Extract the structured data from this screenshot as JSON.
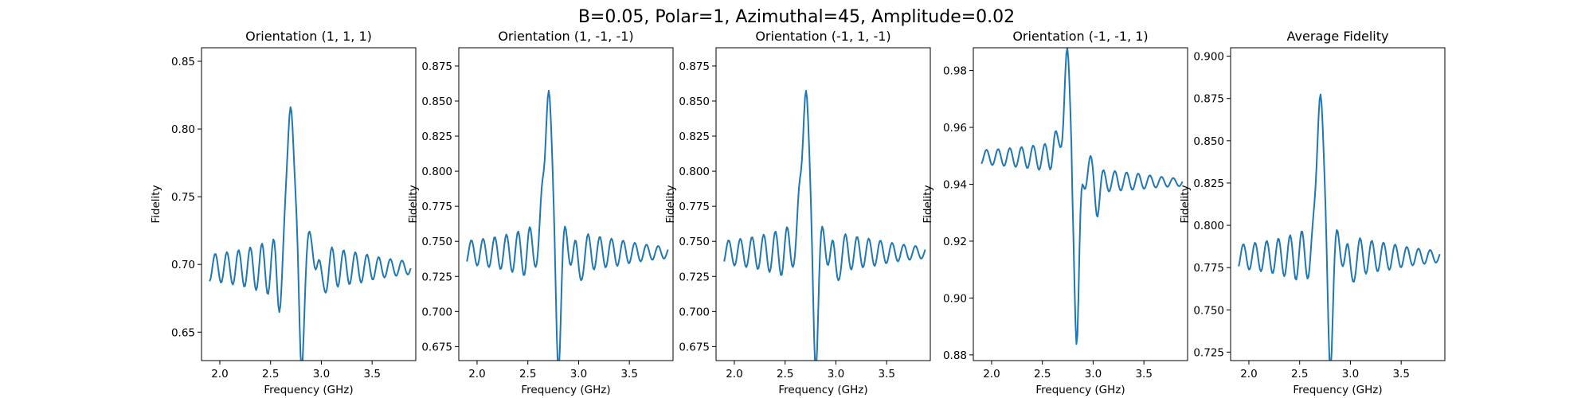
{
  "figure": {
    "suptitle": "B=0.05, Polar=1, Azimuthal=45, Amplitude=0.02"
  },
  "chart_data": [
    {
      "type": "line",
      "title": "Orientation (1, 1, 1)",
      "xlabel": "Frequency (GHz)",
      "ylabel": "Fidelity",
      "xlim": [
        1.82,
        3.93
      ],
      "ylim": [
        0.629,
        0.86
      ],
      "xticks": [
        2.0,
        2.5,
        3.0,
        3.5
      ],
      "yticks": [
        0.65,
        0.7,
        0.75,
        0.8,
        0.85
      ],
      "ytick_decimals": 2,
      "color": "#1f77b4",
      "profile": {
        "base": 0.6975,
        "osc_amp": 0.007,
        "osc_growth": 0.4,
        "osc_phase": 0.0,
        "far_slope": 0.0,
        "peak_value": 0.845,
        "dip_value": 0.64,
        "post_dip_value": 0.674,
        "post_peak_value": 0.721,
        "pre_peak_value": 0.712,
        "pre_dip_value": 0.675,
        "center_x": 2.7,
        "x_start": 1.9,
        "x_end": 3.88,
        "n_points": 200
      }
    },
    {
      "type": "line",
      "title": "Orientation (1, -1, -1)",
      "xlabel": "Frequency (GHz)",
      "ylabel": "Fidelity",
      "xlim": [
        1.82,
        3.93
      ],
      "ylim": [
        0.665,
        0.888
      ],
      "xticks": [
        2.0,
        2.5,
        3.0,
        3.5
      ],
      "yticks": [
        0.675,
        0.7,
        0.725,
        0.75,
        0.775,
        0.8,
        0.825,
        0.85,
        0.875
      ],
      "ytick_decimals": 3,
      "color": "#1f77b4",
      "profile": {
        "base": 0.742,
        "osc_amp": 0.006,
        "osc_growth": 0.4,
        "osc_phase": 0.6,
        "far_slope": 0.0,
        "peak_value": 0.878,
        "dip_value": 0.677,
        "post_dip_value": 0.72,
        "post_peak_value": 0.75,
        "pre_peak_value": 0.772,
        "pre_dip_value": 0.737,
        "center_x": 2.7,
        "x_start": 1.9,
        "x_end": 3.88,
        "n_points": 200
      }
    },
    {
      "type": "line",
      "title": "Orientation (-1, 1, -1)",
      "xlabel": "Frequency (GHz)",
      "ylabel": "Fidelity",
      "xlim": [
        1.82,
        3.93
      ],
      "ylim": [
        0.665,
        0.888
      ],
      "xticks": [
        2.0,
        2.5,
        3.0,
        3.5
      ],
      "yticks": [
        0.675,
        0.7,
        0.725,
        0.75,
        0.775,
        0.8,
        0.825,
        0.85,
        0.875
      ],
      "ytick_decimals": 3,
      "color": "#1f77b4",
      "profile": {
        "base": 0.742,
        "osc_amp": 0.006,
        "osc_growth": 0.4,
        "osc_phase": 0.6,
        "far_slope": 0.0,
        "peak_value": 0.878,
        "dip_value": 0.677,
        "post_dip_value": 0.72,
        "post_peak_value": 0.75,
        "pre_peak_value": 0.772,
        "pre_dip_value": 0.737,
        "center_x": 2.7,
        "x_start": 1.9,
        "x_end": 3.88,
        "n_points": 200
      }
    },
    {
      "type": "line",
      "title": "Orientation (-1, -1, 1)",
      "xlabel": "Frequency (GHz)",
      "ylabel": "Fidelity",
      "xlim": [
        1.82,
        3.93
      ],
      "ylim": [
        0.878,
        0.988
      ],
      "xticks": [
        2.0,
        2.5,
        3.0,
        3.5
      ],
      "yticks": [
        0.88,
        0.9,
        0.92,
        0.94,
        0.96,
        0.98
      ],
      "ytick_decimals": 2,
      "color": "#1f77b4",
      "profile": {
        "base": 0.9495,
        "osc_amp": 0.0015,
        "osc_growth": 0.55,
        "osc_phase": 0.3,
        "far_slope": -0.0045,
        "peak_value": 0.983,
        "dip_value": 0.884,
        "post_dip_value": 0.929,
        "post_peak_value": 0.947,
        "pre_peak_value": 0.96,
        "pre_dip_value": 0.948,
        "center_x": 2.74,
        "x_start": 1.9,
        "x_end": 3.88,
        "n_points": 200,
        "step_after": 0.9415
      }
    },
    {
      "type": "line",
      "title": "Average Fidelity",
      "xlabel": "Frequency (GHz)",
      "ylabel": "Fidelity",
      "xlim": [
        1.82,
        3.93
      ],
      "ylim": [
        0.72,
        0.905
      ],
      "xticks": [
        2.0,
        2.5,
        3.0,
        3.5
      ],
      "yticks": [
        0.725,
        0.75,
        0.775,
        0.8,
        0.825,
        0.85,
        0.875,
        0.9
      ],
      "ytick_decimals": 3,
      "color": "#1f77b4",
      "profile": {
        "base": 0.7815,
        "osc_amp": 0.005,
        "osc_growth": 0.4,
        "osc_phase": 0.5,
        "far_slope": 0.0,
        "peak_value": 0.896,
        "dip_value": 0.73,
        "post_dip_value": 0.766,
        "post_peak_value": 0.79,
        "pre_peak_value": 0.802,
        "pre_dip_value": 0.76,
        "center_x": 2.7,
        "x_start": 1.9,
        "x_end": 3.88,
        "n_points": 200
      }
    }
  ]
}
